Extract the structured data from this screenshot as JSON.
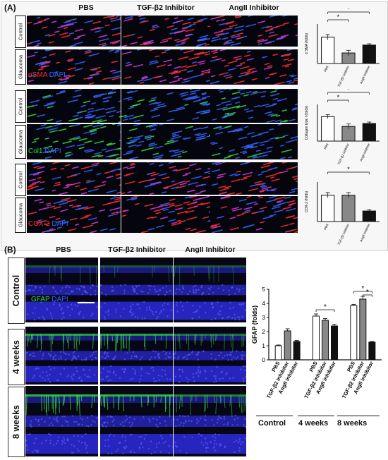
{
  "panel_a": {
    "label": "(A)",
    "columns": [
      "PBS",
      "TGF-β2 Inhibitor",
      "AngII Inhibitor"
    ],
    "row_labels": [
      "Control",
      "Glaucoma",
      "Control",
      "Glaucoma",
      "Control",
      "Glaucoma"
    ],
    "stain_asma": {
      "marker": "αSMA",
      "counter": "DAPI"
    },
    "stain_col1": {
      "marker": "Col1",
      "counter": "DAPI"
    },
    "stain_cox2": {
      "marker": "COX-2",
      "counter": "DAPI"
    }
  },
  "panel_b": {
    "label": "(B)",
    "columns": [
      "PBS",
      "TGF-β2 Inhibitor",
      "AngII Inhibitor"
    ],
    "row_labels": [
      "Control",
      "4 weeks",
      "8 weeks"
    ],
    "stain": {
      "marker": "GFAP",
      "counter": "DAPI"
    },
    "group_labels": [
      "Control",
      "4 weeks",
      "8 weeks"
    ]
  },
  "colors": {
    "red": "#ff3030",
    "green": "#33dd44",
    "blue": "#3366ff",
    "magenta": "#d63cdb",
    "retina_blue": "#2a2ad0"
  },
  "chart_data": [
    {
      "type": "bar",
      "ylabel": "α SMA (folds)",
      "categories": [
        "PBS",
        "TGF-β2 inhibitor",
        "AngII inhibitor"
      ],
      "values": [
        1.0,
        0.4,
        0.7
      ],
      "errors": [
        0.1,
        0.1,
        0.05
      ],
      "ylim": [
        0,
        1.5
      ],
      "yticks": [],
      "bar_fills": [
        "#ffffff",
        "#888888",
        "#111111"
      ],
      "significance": [
        "*",
        "*"
      ]
    },
    {
      "type": "bar",
      "ylabel": "Collagen type I (folds)",
      "categories": [
        "PBS",
        "TGF-β2 inhibitor",
        "AngII inhibitor"
      ],
      "values": [
        1.0,
        0.6,
        0.72
      ],
      "errors": [
        0.08,
        0.1,
        0.06
      ],
      "ylim": [
        0,
        1.5
      ],
      "yticks": [],
      "bar_fills": [
        "#ffffff",
        "#888888",
        "#111111"
      ],
      "significance": [
        "*",
        "*"
      ]
    },
    {
      "type": "bar",
      "ylabel": "COX-2 (folds)",
      "categories": [
        "PBS",
        "TGF-β2 inhibitor",
        "AngII inhibitor"
      ],
      "values": [
        1.0,
        1.0,
        0.4
      ],
      "errors": [
        0.1,
        0.1,
        0.05
      ],
      "ylim": [
        0,
        1.5
      ],
      "yticks": [],
      "bar_fills": [
        "#ffffff",
        "#888888",
        "#111111"
      ],
      "significance": [
        "*"
      ]
    },
    {
      "type": "bar",
      "ylabel": "GFAP (folds)",
      "groups": [
        "Control",
        "4 weeks",
        "8 weeks"
      ],
      "categories": [
        "PBS",
        "TGF-β2 inhibitor",
        "AngII inhibitor"
      ],
      "series": [
        {
          "values": [
            1.0,
            3.1,
            3.85
          ]
        },
        {
          "values": [
            2.05,
            2.8,
            4.3
          ]
        },
        {
          "values": [
            1.3,
            2.4,
            1.25
          ]
        }
      ],
      "errors": [
        [
          0.05,
          0.15,
          0.08
        ],
        [
          0.15,
          0.12,
          0.2
        ],
        [
          0.07,
          0.12,
          0.05
        ]
      ],
      "ylim": [
        0,
        5
      ],
      "yticks": [
        "0",
        "1",
        "2",
        "3",
        "4",
        "5"
      ],
      "bar_fills": [
        "#ffffff",
        "#888888",
        "#111111"
      ],
      "significance": [
        "*",
        "*",
        "*"
      ]
    }
  ]
}
